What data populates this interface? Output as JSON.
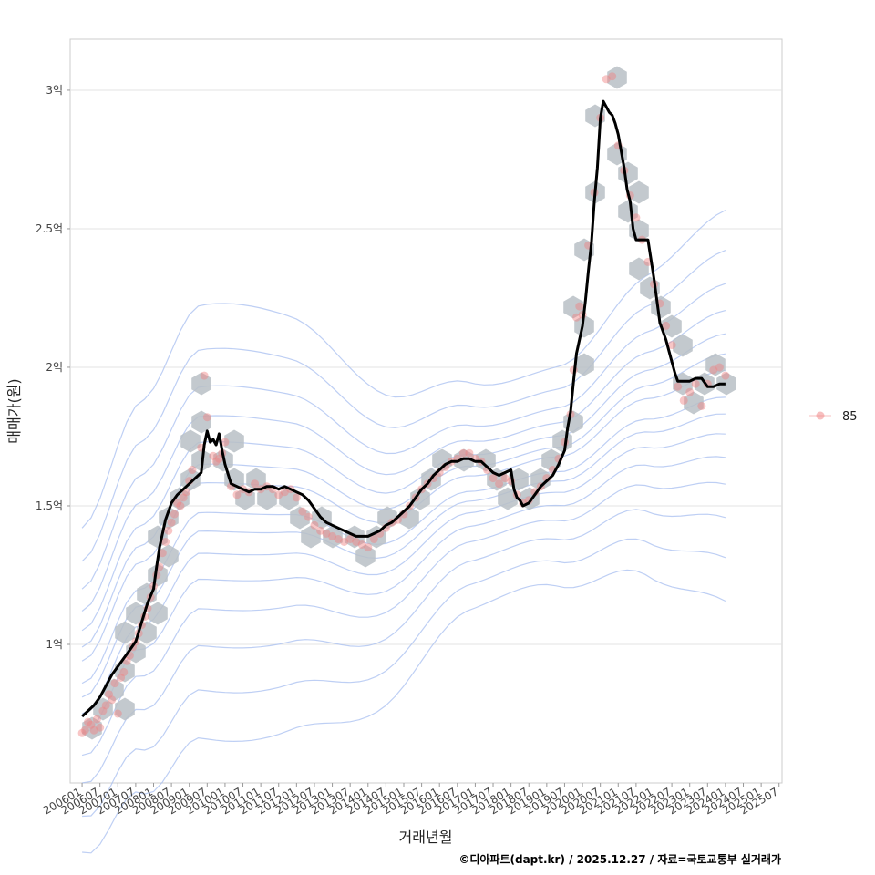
{
  "chart_data": {
    "type": "line",
    "title": "",
    "xlabel": "거래년월",
    "ylabel": "매매가(원)",
    "x_ticks": [
      "200601",
      "200607",
      "200701",
      "200707",
      "200801",
      "200807",
      "200901",
      "200907",
      "201001",
      "201007",
      "201101",
      "201107",
      "201201",
      "201207",
      "201301",
      "201307",
      "201401",
      "201407",
      "201501",
      "201507",
      "201601",
      "201607",
      "201701",
      "201707",
      "201801",
      "201807",
      "201901",
      "201907",
      "202001",
      "202007",
      "202101",
      "202107",
      "202201",
      "202207",
      "202301",
      "202307",
      "202401",
      "202407",
      "202501",
      "202507"
    ],
    "y_ticks": [
      {
        "value": 10000,
        "label": "1억"
      },
      {
        "value": 15000,
        "label": "1.5억"
      },
      {
        "value": 20000,
        "label": "2억"
      },
      {
        "value": 25000,
        "label": "2.5억"
      },
      {
        "value": 30000,
        "label": "3억"
      }
    ],
    "x_unit": "months since 2006-01",
    "y_unit": "만원",
    "xlim": [
      -4,
      235
    ],
    "ylim": [
      5000,
      31840
    ],
    "grid": true,
    "legend": {
      "position": "right",
      "entries": [
        {
          "label": "85",
          "color": "#f08080"
        }
      ]
    },
    "credit": "©디아파트(dapt.kr) / 2025.12.27 / 자료=국토교통부 실거래가",
    "colors": {
      "line": "#000000",
      "points": "#f08080",
      "hex": "#b8bfc6",
      "contour": "#a8bff0"
    },
    "series": [
      {
        "name": "moving average",
        "style": "line",
        "points": [
          [
            0,
            7400
          ],
          [
            2,
            7600
          ],
          [
            4,
            7800
          ],
          [
            6,
            8100
          ],
          [
            8,
            8500
          ],
          [
            10,
            8900
          ],
          [
            12,
            9200
          ],
          [
            14,
            9500
          ],
          [
            16,
            9800
          ],
          [
            18,
            10100
          ],
          [
            20,
            10800
          ],
          [
            22,
            11500
          ],
          [
            24,
            12000
          ],
          [
            25,
            12800
          ],
          [
            26,
            13500
          ],
          [
            27,
            14000
          ],
          [
            28,
            14500
          ],
          [
            30,
            15100
          ],
          [
            32,
            15400
          ],
          [
            34,
            15600
          ],
          [
            36,
            15800
          ],
          [
            38,
            16000
          ],
          [
            40,
            16200
          ],
          [
            41,
            17200
          ],
          [
            42,
            17700
          ],
          [
            43,
            17300
          ],
          [
            44,
            17400
          ],
          [
            45,
            17200
          ],
          [
            46,
            17600
          ],
          [
            47,
            17000
          ],
          [
            48,
            16500
          ],
          [
            50,
            15800
          ],
          [
            52,
            15700
          ],
          [
            54,
            15600
          ],
          [
            56,
            15500
          ],
          [
            58,
            15600
          ],
          [
            60,
            15600
          ],
          [
            62,
            15700
          ],
          [
            64,
            15700
          ],
          [
            66,
            15600
          ],
          [
            68,
            15700
          ],
          [
            70,
            15600
          ],
          [
            72,
            15500
          ],
          [
            74,
            15400
          ],
          [
            76,
            15200
          ],
          [
            78,
            14900
          ],
          [
            80,
            14600
          ],
          [
            82,
            14400
          ],
          [
            84,
            14300
          ],
          [
            86,
            14200
          ],
          [
            88,
            14100
          ],
          [
            90,
            14000
          ],
          [
            92,
            13900
          ],
          [
            94,
            13900
          ],
          [
            96,
            13900
          ],
          [
            98,
            14000
          ],
          [
            100,
            14100
          ],
          [
            102,
            14300
          ],
          [
            104,
            14400
          ],
          [
            106,
            14600
          ],
          [
            108,
            14800
          ],
          [
            110,
            15000
          ],
          [
            112,
            15300
          ],
          [
            114,
            15600
          ],
          [
            116,
            15800
          ],
          [
            118,
            16100
          ],
          [
            120,
            16300
          ],
          [
            122,
            16500
          ],
          [
            124,
            16600
          ],
          [
            126,
            16600
          ],
          [
            128,
            16700
          ],
          [
            130,
            16700
          ],
          [
            132,
            16600
          ],
          [
            134,
            16600
          ],
          [
            136,
            16400
          ],
          [
            138,
            16200
          ],
          [
            140,
            16100
          ],
          [
            142,
            16200
          ],
          [
            144,
            16300
          ],
          [
            145,
            15600
          ],
          [
            146,
            15300
          ],
          [
            147,
            15200
          ],
          [
            148,
            15000
          ],
          [
            150,
            15100
          ],
          [
            152,
            15400
          ],
          [
            154,
            15700
          ],
          [
            156,
            15900
          ],
          [
            158,
            16100
          ],
          [
            160,
            16500
          ],
          [
            162,
            17000
          ],
          [
            163,
            17800
          ],
          [
            164,
            18400
          ],
          [
            165,
            19500
          ],
          [
            166,
            20500
          ],
          [
            167,
            21000
          ],
          [
            168,
            21500
          ],
          [
            169,
            22400
          ],
          [
            170,
            23500
          ],
          [
            171,
            24500
          ],
          [
            172,
            26000
          ],
          [
            173,
            27200
          ],
          [
            174,
            29000
          ],
          [
            175,
            29600
          ],
          [
            176,
            29400
          ],
          [
            177,
            29200
          ],
          [
            178,
            29100
          ],
          [
            179,
            28800
          ],
          [
            180,
            28400
          ],
          [
            181,
            27800
          ],
          [
            182,
            27200
          ],
          [
            183,
            26400
          ],
          [
            184,
            26000
          ],
          [
            185,
            25000
          ],
          [
            186,
            24600
          ],
          [
            188,
            24600
          ],
          [
            190,
            24600
          ],
          [
            192,
            23200
          ],
          [
            194,
            21600
          ],
          [
            196,
            21000
          ],
          [
            198,
            20200
          ],
          [
            199,
            19800
          ],
          [
            200,
            19500
          ],
          [
            202,
            19500
          ],
          [
            204,
            19500
          ],
          [
            206,
            19600
          ],
          [
            208,
            19600
          ],
          [
            210,
            19300
          ],
          [
            212,
            19300
          ],
          [
            214,
            19400
          ],
          [
            216,
            19400
          ]
        ]
      },
      {
        "name": "85",
        "style": "points",
        "points": [
          [
            0,
            6800
          ],
          [
            1,
            6900
          ],
          [
            2,
            7200
          ],
          [
            3,
            7100
          ],
          [
            4,
            6900
          ],
          [
            5,
            7300
          ],
          [
            6,
            7000
          ],
          [
            7,
            7600
          ],
          [
            8,
            7800
          ],
          [
            9,
            8200
          ],
          [
            10,
            8000
          ],
          [
            11,
            8600
          ],
          [
            12,
            7500
          ],
          [
            13,
            8800
          ],
          [
            14,
            9000
          ],
          [
            15,
            9400
          ],
          [
            16,
            9600
          ],
          [
            17,
            9900
          ],
          [
            18,
            10100
          ],
          [
            19,
            10400
          ],
          [
            20,
            10700
          ],
          [
            21,
            11000
          ],
          [
            22,
            11300
          ],
          [
            23,
            11700
          ],
          [
            24,
            12100
          ],
          [
            25,
            12500
          ],
          [
            26,
            12800
          ],
          [
            27,
            13300
          ],
          [
            28,
            13700
          ],
          [
            29,
            14100
          ],
          [
            30,
            14400
          ],
          [
            31,
            14700
          ],
          [
            32,
            15100
          ],
          [
            33,
            15000
          ],
          [
            34,
            15300
          ],
          [
            35,
            15500
          ],
          [
            36,
            15900
          ],
          [
            37,
            16300
          ],
          [
            40,
            17100
          ],
          [
            41,
            19700
          ],
          [
            42,
            18200
          ],
          [
            44,
            16800
          ],
          [
            45,
            16600
          ],
          [
            46,
            16700
          ],
          [
            47,
            16900
          ],
          [
            48,
            17300
          ],
          [
            50,
            15700
          ],
          [
            52,
            15400
          ],
          [
            54,
            15600
          ],
          [
            56,
            15500
          ],
          [
            58,
            15800
          ],
          [
            60,
            15600
          ],
          [
            62,
            15700
          ],
          [
            64,
            15600
          ],
          [
            66,
            15400
          ],
          [
            68,
            15500
          ],
          [
            70,
            15600
          ],
          [
            72,
            15300
          ],
          [
            74,
            14800
          ],
          [
            76,
            14600
          ],
          [
            78,
            14300
          ],
          [
            80,
            14100
          ],
          [
            82,
            14000
          ],
          [
            84,
            13900
          ],
          [
            86,
            13800
          ],
          [
            88,
            13700
          ],
          [
            90,
            13800
          ],
          [
            92,
            13700
          ],
          [
            94,
            13600
          ],
          [
            96,
            13500
          ],
          [
            98,
            13800
          ],
          [
            100,
            14000
          ],
          [
            102,
            14200
          ],
          [
            104,
            14400
          ],
          [
            106,
            14500
          ],
          [
            108,
            14700
          ],
          [
            110,
            15000
          ],
          [
            112,
            15300
          ],
          [
            114,
            15600
          ],
          [
            116,
            15800
          ],
          [
            118,
            16000
          ],
          [
            120,
            16200
          ],
          [
            122,
            16400
          ],
          [
            124,
            16600
          ],
          [
            126,
            16700
          ],
          [
            128,
            16900
          ],
          [
            130,
            16900
          ],
          [
            132,
            16700
          ],
          [
            134,
            16600
          ],
          [
            136,
            16300
          ],
          [
            138,
            16000
          ],
          [
            140,
            15800
          ],
          [
            142,
            16000
          ],
          [
            144,
            15900
          ],
          [
            146,
            15400
          ],
          [
            148,
            15100
          ],
          [
            150,
            15200
          ],
          [
            152,
            15500
          ],
          [
            154,
            15700
          ],
          [
            156,
            16000
          ],
          [
            158,
            16300
          ],
          [
            160,
            16700
          ],
          [
            162,
            17300
          ],
          [
            164,
            18300
          ],
          [
            165,
            19900
          ],
          [
            166,
            21800
          ],
          [
            167,
            22200
          ],
          [
            168,
            21900
          ],
          [
            170,
            24400
          ],
          [
            172,
            26300
          ],
          [
            174,
            29000
          ],
          [
            176,
            30400
          ],
          [
            178,
            30500
          ],
          [
            180,
            28000
          ],
          [
            182,
            27100
          ],
          [
            184,
            26200
          ],
          [
            186,
            25400
          ],
          [
            188,
            24600
          ],
          [
            190,
            23800
          ],
          [
            192,
            23000
          ],
          [
            194,
            22300
          ],
          [
            196,
            21500
          ],
          [
            198,
            20800
          ],
          [
            200,
            19300
          ],
          [
            202,
            18800
          ],
          [
            204,
            19100
          ],
          [
            206,
            19400
          ],
          [
            208,
            18600
          ],
          [
            210,
            19400
          ],
          [
            212,
            19900
          ],
          [
            214,
            20000
          ],
          [
            216,
            19700
          ]
        ]
      }
    ]
  }
}
